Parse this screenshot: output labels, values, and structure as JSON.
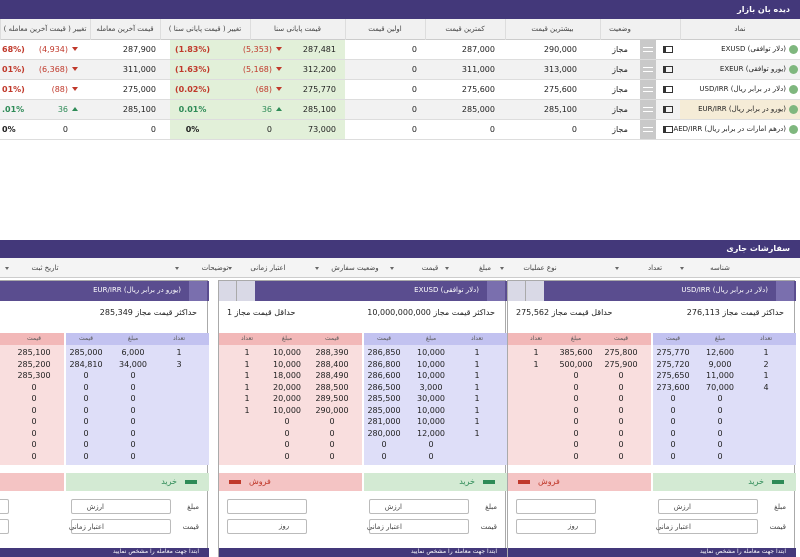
{
  "market_watch": {
    "title": "دیده بان بازار",
    "columns": [
      "نماد",
      "وضعیت",
      "بیشترین قیمت",
      "کمترین قیمت",
      "اولین قیمت",
      "قیمت پایانی سنا",
      "تغییر ( قیمت پایانی سنا )",
      "قیمت آخرین معامله",
      "تغییر ( قیمت آخرین معامله )"
    ],
    "rows": [
      {
        "symbol": "EXUSD (دلار توافقی)",
        "status": "مجاز",
        "max": "290,000",
        "min": "287,000",
        "first": "0",
        "close": "287,481",
        "close_change": "(5,353)",
        "close_change_pct": "(1.83%)",
        "close_trend": "down",
        "last": "287,900",
        "last_change": "(4,934)",
        "last_change_pct": "68%)",
        "last_trend": "down"
      },
      {
        "symbol": "EXEUR (یورو توافقی)",
        "status": "مجاز",
        "max": "313,000",
        "min": "311,000",
        "first": "0",
        "close": "312,200",
        "close_change": "(5,168)",
        "close_change_pct": "(1.63%)",
        "close_trend": "down",
        "last": "311,000",
        "last_change": "(6,368)",
        "last_change_pct": "01%)",
        "last_trend": "down"
      },
      {
        "symbol": "USD/IRR (دلار در برابر ریال)",
        "status": "مجاز",
        "max": "275,600",
        "min": "275,600",
        "first": "0",
        "close": "275,770",
        "close_change": "(68)",
        "close_change_pct": "(0.02%)",
        "close_trend": "down",
        "last": "275,000",
        "last_change": "(88)",
        "last_change_pct": "01%)",
        "last_trend": "down"
      },
      {
        "symbol": "EUR/IRR (یورو در برابر ریال)",
        "status": "مجاز",
        "max": "285,100",
        "min": "285,000",
        "first": "0",
        "close": "285,100",
        "close_change": "36",
        "close_change_pct": "0.01%",
        "close_trend": "up",
        "last": "285,100",
        "last_change": "36",
        "last_change_pct": ".01%",
        "last_trend": "up"
      },
      {
        "symbol": "AED/IRR (درهم امارات در برابر ریال)",
        "status": "مجاز",
        "max": "0",
        "min": "0",
        "first": "0",
        "close": "73,000",
        "close_change": "0",
        "close_change_pct": "0%",
        "close_trend": null,
        "last": "0",
        "last_change": "0",
        "last_change_pct": "0%",
        "last_trend": null
      }
    ]
  },
  "orders": {
    "title": "سفارشات جاری",
    "filters": [
      "شناسه",
      "تعداد",
      "نوع عملیات",
      "مبلغ",
      "قیمت",
      "وضعیت سفارش",
      "اعتبار زمانی",
      "توضیحات",
      "تاریخ ثبت"
    ],
    "book_headers": [
      "تعداد",
      "مبلغ",
      "قیمت"
    ],
    "sell_label": "فروش",
    "buy_label": "خرید",
    "form_labels": [
      "مبلغ",
      "قیمت",
      "ارزش",
      "اعتبار زمانی"
    ],
    "duration": "روز",
    "note": "ابتدا جهت معامله را مشخص نمایید",
    "panels": [
      {
        "symbol": "USD/IRR (دلار در برابر ریال)",
        "limits": [
          "حداکثر قیمت مجاز 276,113",
          "حداقل قیمت مجاز 275,562"
        ],
        "buy": [
          [
            "1",
            "12,600",
            "275,770"
          ],
          [
            "2",
            "9,000",
            "275,720"
          ],
          [
            "1",
            "11,000",
            "275,650"
          ],
          [
            "4",
            "70,000",
            "273,600"
          ],
          [
            null,
            "0",
            "0"
          ],
          [
            null,
            "0",
            "0"
          ],
          [
            null,
            "0",
            "0"
          ],
          [
            null,
            "0",
            "0"
          ],
          [
            null,
            "0",
            "0"
          ],
          [
            null,
            "0",
            "0"
          ]
        ],
        "sell": [
          [
            "1",
            "385,600",
            "275,800"
          ],
          [
            "1",
            "500,000",
            "275,900"
          ],
          [
            null,
            "0",
            "0"
          ],
          [
            null,
            "0",
            "0"
          ],
          [
            null,
            "0",
            "0"
          ],
          [
            null,
            "0",
            "0"
          ],
          [
            null,
            "0",
            "0"
          ],
          [
            null,
            "0",
            "0"
          ],
          [
            null,
            "0",
            "0"
          ],
          [
            null,
            "0",
            "0"
          ]
        ]
      },
      {
        "symbol": "EXUSD (دلار توافقی)",
        "limits": [
          "حداکثر قیمت مجاز 10,000,000,000",
          "حداقل قیمت مجاز 1"
        ],
        "buy": [
          [
            "1",
            "10,000",
            "286,850"
          ],
          [
            "1",
            "10,000",
            "286,800"
          ],
          [
            "1",
            "10,000",
            "286,600"
          ],
          [
            "1",
            "3,000",
            "286,500"
          ],
          [
            "1",
            "30,000",
            "285,500"
          ],
          [
            "1",
            "10,000",
            "285,000"
          ],
          [
            "1",
            "10,000",
            "281,000"
          ],
          [
            "1",
            "12,000",
            "280,000"
          ],
          [
            null,
            "0",
            "0"
          ],
          [
            null,
            "0",
            "0"
          ]
        ],
        "sell": [
          [
            "1",
            "10,000",
            "288,390"
          ],
          [
            "1",
            "10,000",
            "288,400"
          ],
          [
            "1",
            "18,000",
            "288,490"
          ],
          [
            "1",
            "20,000",
            "288,500"
          ],
          [
            "1",
            "20,000",
            "289,500"
          ],
          [
            "1",
            "10,000",
            "290,000"
          ],
          [
            null,
            "0",
            "0"
          ],
          [
            null,
            "0",
            "0"
          ],
          [
            null,
            "0",
            "0"
          ],
          [
            null,
            "0",
            "0"
          ]
        ]
      },
      {
        "symbol": "EUR/IRR (یورو در برابر ریال)",
        "limits": [
          "حداکثر قیمت مجاز 285,349"
        ],
        "buy": [
          [
            "1",
            "6,000",
            "285,000"
          ],
          [
            "3",
            "34,000",
            "284,810"
          ],
          [
            null,
            "0",
            "0"
          ],
          [
            null,
            "0",
            "0"
          ],
          [
            null,
            "0",
            "0"
          ],
          [
            null,
            "0",
            "0"
          ],
          [
            null,
            "0",
            "0"
          ],
          [
            null,
            "0",
            "0"
          ],
          [
            null,
            "0",
            "0"
          ],
          [
            null,
            "0",
            "0"
          ]
        ],
        "sell": [
          [
            null,
            null,
            "285,100"
          ],
          [
            null,
            null,
            "285,200"
          ],
          [
            null,
            null,
            "285,300"
          ],
          [
            null,
            null,
            "0"
          ],
          [
            null,
            null,
            "0"
          ],
          [
            null,
            null,
            "0"
          ],
          [
            null,
            null,
            "0"
          ],
          [
            null,
            null,
            "0"
          ],
          [
            null,
            null,
            "0"
          ],
          [
            null,
            null,
            "0"
          ]
        ]
      }
    ]
  }
}
